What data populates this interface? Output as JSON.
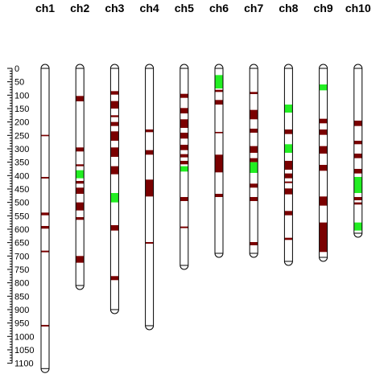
{
  "chart_data": {
    "type": "ideogram",
    "axis": {
      "min": 0,
      "max": 1100,
      "major_step": 50,
      "minor_step": 10
    },
    "axis_labels": [
      "0",
      "50",
      "100",
      "150",
      "200",
      "250",
      "300",
      "350",
      "400",
      "450",
      "500",
      "550",
      "600",
      "650",
      "700",
      "750",
      "800",
      "850",
      "900",
      "950",
      "1000",
      "1050",
      "1100"
    ],
    "colors": {
      "outline": "#000000",
      "fill": "#ffffff",
      "dark": "#7a0000",
      "green": "#22ee22"
    },
    "chromosomes": [
      {
        "name": "ch1",
        "length": 1120,
        "marks": [
          {
            "start": 248,
            "end": 253,
            "color": "dark"
          },
          {
            "start": 405,
            "end": 411,
            "color": "dark"
          },
          {
            "start": 538,
            "end": 548,
            "color": "dark"
          },
          {
            "start": 588,
            "end": 598,
            "color": "dark"
          },
          {
            "start": 680,
            "end": 686,
            "color": "dark"
          },
          {
            "start": 957,
            "end": 963,
            "color": "dark"
          }
        ]
      },
      {
        "name": "ch2",
        "length": 810,
        "marks": [
          {
            "start": 103,
            "end": 123,
            "color": "dark"
          },
          {
            "start": 295,
            "end": 310,
            "color": "dark"
          },
          {
            "start": 358,
            "end": 365,
            "color": "dark"
          },
          {
            "start": 380,
            "end": 410,
            "color": "green"
          },
          {
            "start": 420,
            "end": 430,
            "color": "dark"
          },
          {
            "start": 445,
            "end": 468,
            "color": "dark"
          },
          {
            "start": 500,
            "end": 530,
            "color": "dark"
          },
          {
            "start": 555,
            "end": 565,
            "color": "dark"
          },
          {
            "start": 700,
            "end": 725,
            "color": "dark"
          }
        ]
      },
      {
        "name": "ch3",
        "length": 900,
        "marks": [
          {
            "start": 85,
            "end": 98,
            "color": "dark"
          },
          {
            "start": 122,
            "end": 150,
            "color": "dark"
          },
          {
            "start": 175,
            "end": 182,
            "color": "dark"
          },
          {
            "start": 200,
            "end": 215,
            "color": "dark"
          },
          {
            "start": 235,
            "end": 270,
            "color": "dark"
          },
          {
            "start": 295,
            "end": 330,
            "color": "dark"
          },
          {
            "start": 365,
            "end": 395,
            "color": "dark"
          },
          {
            "start": 465,
            "end": 500,
            "color": "green"
          },
          {
            "start": 585,
            "end": 605,
            "color": "dark"
          },
          {
            "start": 775,
            "end": 790,
            "color": "dark"
          }
        ]
      },
      {
        "name": "ch4",
        "length": 960,
        "marks": [
          {
            "start": 228,
            "end": 238,
            "color": "dark"
          },
          {
            "start": 305,
            "end": 322,
            "color": "dark"
          },
          {
            "start": 415,
            "end": 478,
            "color": "dark"
          },
          {
            "start": 648,
            "end": 654,
            "color": "dark"
          }
        ]
      },
      {
        "name": "ch5",
        "length": 735,
        "marks": [
          {
            "start": 95,
            "end": 110,
            "color": "dark"
          },
          {
            "start": 148,
            "end": 168,
            "color": "dark"
          },
          {
            "start": 190,
            "end": 222,
            "color": "dark"
          },
          {
            "start": 240,
            "end": 262,
            "color": "dark"
          },
          {
            "start": 285,
            "end": 305,
            "color": "dark"
          },
          {
            "start": 320,
            "end": 332,
            "color": "dark"
          },
          {
            "start": 345,
            "end": 358,
            "color": "dark"
          },
          {
            "start": 365,
            "end": 385,
            "color": "green"
          },
          {
            "start": 480,
            "end": 495,
            "color": "dark"
          },
          {
            "start": 590,
            "end": 596,
            "color": "dark"
          }
        ]
      },
      {
        "name": "ch6",
        "length": 690,
        "marks": [
          {
            "start": 25,
            "end": 75,
            "color": "green"
          },
          {
            "start": 80,
            "end": 88,
            "color": "dark"
          },
          {
            "start": 118,
            "end": 135,
            "color": "dark"
          },
          {
            "start": 237,
            "end": 242,
            "color": "dark"
          },
          {
            "start": 322,
            "end": 388,
            "color": "dark"
          },
          {
            "start": 468,
            "end": 480,
            "color": "dark"
          }
        ]
      },
      {
        "name": "ch7",
        "length": 690,
        "marks": [
          {
            "start": 88,
            "end": 96,
            "color": "dark"
          },
          {
            "start": 155,
            "end": 190,
            "color": "dark"
          },
          {
            "start": 225,
            "end": 240,
            "color": "dark"
          },
          {
            "start": 290,
            "end": 315,
            "color": "dark"
          },
          {
            "start": 335,
            "end": 350,
            "color": "dark"
          },
          {
            "start": 350,
            "end": 390,
            "color": "green"
          },
          {
            "start": 430,
            "end": 445,
            "color": "dark"
          },
          {
            "start": 480,
            "end": 495,
            "color": "dark"
          },
          {
            "start": 648,
            "end": 660,
            "color": "dark"
          }
        ]
      },
      {
        "name": "ch8",
        "length": 720,
        "marks": [
          {
            "start": 135,
            "end": 165,
            "color": "green"
          },
          {
            "start": 228,
            "end": 245,
            "color": "dark"
          },
          {
            "start": 283,
            "end": 315,
            "color": "green"
          },
          {
            "start": 345,
            "end": 378,
            "color": "dark"
          },
          {
            "start": 392,
            "end": 410,
            "color": "dark"
          },
          {
            "start": 422,
            "end": 428,
            "color": "dark"
          },
          {
            "start": 448,
            "end": 470,
            "color": "dark"
          },
          {
            "start": 532,
            "end": 548,
            "color": "dark"
          },
          {
            "start": 632,
            "end": 640,
            "color": "dark"
          }
        ]
      },
      {
        "name": "ch9",
        "length": 705,
        "marks": [
          {
            "start": 60,
            "end": 82,
            "color": "green"
          },
          {
            "start": 188,
            "end": 205,
            "color": "dark"
          },
          {
            "start": 228,
            "end": 248,
            "color": "dark"
          },
          {
            "start": 290,
            "end": 318,
            "color": "dark"
          },
          {
            "start": 360,
            "end": 382,
            "color": "dark"
          },
          {
            "start": 478,
            "end": 512,
            "color": "dark"
          },
          {
            "start": 575,
            "end": 685,
            "color": "dark"
          }
        ]
      },
      {
        "name": "ch10",
        "length": 615,
        "marks": [
          {
            "start": 195,
            "end": 215,
            "color": "dark"
          },
          {
            "start": 270,
            "end": 283,
            "color": "dark"
          },
          {
            "start": 318,
            "end": 335,
            "color": "dark"
          },
          {
            "start": 375,
            "end": 392,
            "color": "dark"
          },
          {
            "start": 405,
            "end": 465,
            "color": "green"
          },
          {
            "start": 480,
            "end": 492,
            "color": "dark"
          },
          {
            "start": 500,
            "end": 508,
            "color": "dark"
          },
          {
            "start": 575,
            "end": 605,
            "color": "green"
          }
        ]
      }
    ]
  }
}
